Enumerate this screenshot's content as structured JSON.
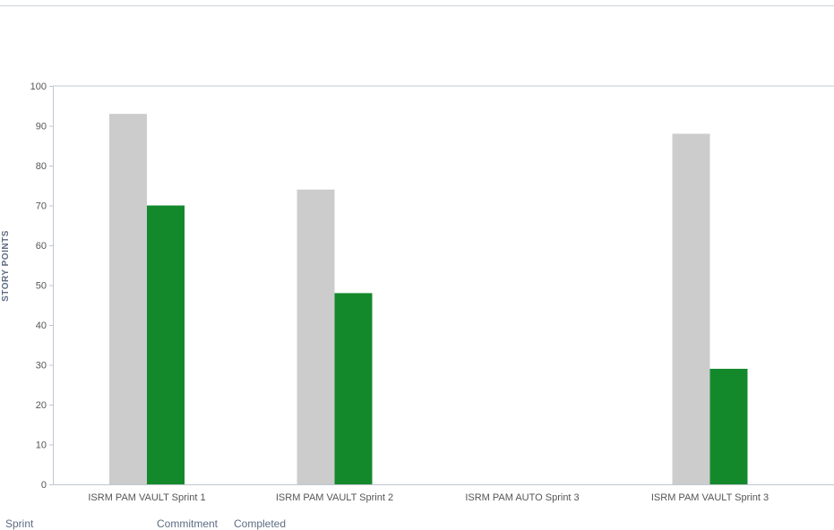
{
  "chart_data": {
    "type": "bar",
    "ylabel": "STORY POINTS",
    "ylim": [
      0,
      100
    ],
    "yticks": [
      0,
      10,
      20,
      30,
      40,
      50,
      60,
      70,
      80,
      90,
      100
    ],
    "categories": [
      "ISRM PAM VAULT Sprint 1",
      "ISRM PAM VAULT Sprint 2",
      "ISRM PAM AUTO Sprint 3",
      "ISRM PAM VAULT Sprint 3"
    ],
    "series": [
      {
        "name": "Commitment",
        "color": "#cccccc",
        "values": [
          93,
          74,
          0,
          88
        ]
      },
      {
        "name": "Completed",
        "color": "#14892c",
        "values": [
          70,
          48,
          0,
          29
        ]
      }
    ],
    "grid": false,
    "legend": "none"
  },
  "table": {
    "headers": [
      "Sprint",
      "Commitment",
      "Completed"
    ]
  }
}
